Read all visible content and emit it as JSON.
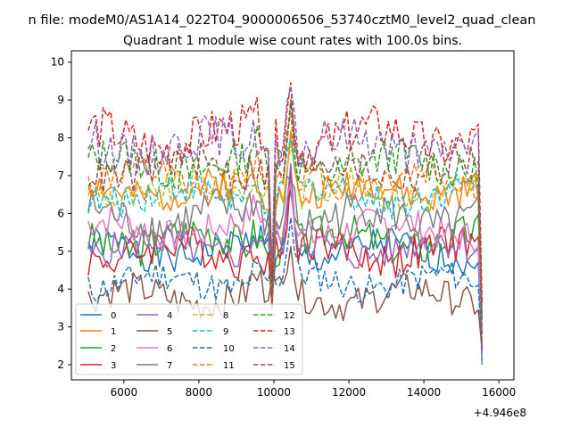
{
  "figure": {
    "suptitle": "n file: modeM0/AS1A14_022T04_9000006506_53740cztM0_level2_quad_clean",
    "title": "Quadrant 1 module wise count rates with 100.0s bins.",
    "offset_label": "+4.946e8"
  },
  "chart_data": {
    "type": "line",
    "title": "Quadrant 1 module wise count rates with 100.0s bins.",
    "xlabel": "",
    "ylabel": "",
    "x_offset": 494600000,
    "xlim": [
      4600,
      16400
    ],
    "ylim": [
      1.6,
      10.3
    ],
    "xticks": [
      6000,
      8000,
      10000,
      12000,
      14000,
      16000
    ],
    "yticks": [
      2,
      3,
      4,
      5,
      6,
      7,
      8,
      9,
      10
    ],
    "x_start": 5050,
    "x_step": 100,
    "legend": {
      "placement": "lower-left",
      "columns": 4
    },
    "series": [
      {
        "name": "0",
        "color": "#1f77b4",
        "dash": "solid",
        "base": 5.0,
        "amp": 0.22,
        "seed": 1
      },
      {
        "name": "1",
        "color": "#ff7f0e",
        "dash": "solid",
        "base": 6.6,
        "amp": 0.22,
        "seed": 2
      },
      {
        "name": "2",
        "color": "#2ca02c",
        "dash": "solid",
        "base": 5.3,
        "amp": 0.25,
        "seed": 3
      },
      {
        "name": "3",
        "color": "#d62728",
        "dash": "solid",
        "base": 5.0,
        "amp": 0.25,
        "seed": 4
      },
      {
        "name": "4",
        "color": "#9467bd",
        "dash": "solid",
        "base": 5.1,
        "amp": 0.22,
        "seed": 5
      },
      {
        "name": "5",
        "color": "#8c564b",
        "dash": "solid",
        "base": 3.8,
        "amp": 0.22,
        "seed": 6
      },
      {
        "name": "6",
        "color": "#e377c2",
        "dash": "solid",
        "base": 5.6,
        "amp": 0.22,
        "seed": 7
      },
      {
        "name": "7",
        "color": "#7f7f7f",
        "dash": "solid",
        "base": 5.9,
        "amp": 0.28,
        "seed": 8
      },
      {
        "name": "8",
        "color": "#bcbd22",
        "dash": "dashed",
        "base": 6.6,
        "amp": 0.22,
        "seed": 9
      },
      {
        "name": "9",
        "color": "#17becf",
        "dash": "dashed",
        "base": 6.5,
        "amp": 0.22,
        "seed": 10
      },
      {
        "name": "10",
        "color": "#1f77b4",
        "dash": "dashed",
        "base": 4.2,
        "amp": 0.2,
        "seed": 11
      },
      {
        "name": "11",
        "color": "#ff7f0e",
        "dash": "dashed",
        "base": 6.9,
        "amp": 0.22,
        "seed": 12
      },
      {
        "name": "12",
        "color": "#2ca02c",
        "dash": "dashed",
        "base": 7.3,
        "amp": 0.25,
        "seed": 13
      },
      {
        "name": "13",
        "color": "#d62728",
        "dash": "dashed",
        "base": 8.0,
        "amp": 0.3,
        "seed": 14
      },
      {
        "name": "14",
        "color": "#9467bd",
        "dash": "dashed",
        "base": 7.8,
        "amp": 0.28,
        "seed": 15
      },
      {
        "name": "15",
        "color": "#8c564b",
        "dash": "dashed",
        "base": 7.2,
        "amp": 0.25,
        "seed": 16
      }
    ]
  }
}
